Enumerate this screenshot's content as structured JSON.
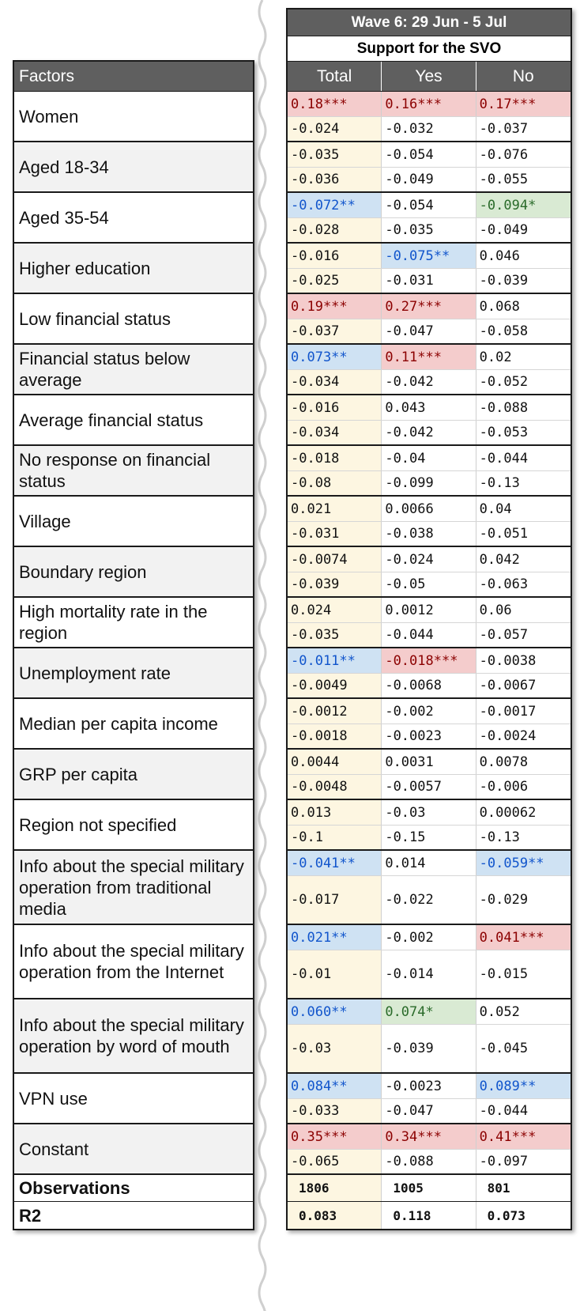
{
  "wave_title": "Wave 6: 29 Jun - 5 Jul",
  "support_title": "Support for the SVO",
  "factors_header": "Factors",
  "columns": [
    "Total",
    "Yes",
    "No"
  ],
  "rows": [
    {
      "factor": "Women",
      "coef": [
        {
          "v": "0.18***",
          "c": "red"
        },
        {
          "v": "0.16***",
          "c": "red"
        },
        {
          "v": "0.17***",
          "c": "red"
        }
      ],
      "se": [
        "-0.024",
        "-0.032",
        "-0.037"
      ]
    },
    {
      "factor": "Aged 18-34",
      "coef": [
        {
          "v": "-0.035",
          "c": ""
        },
        {
          "v": "-0.054",
          "c": ""
        },
        {
          "v": "-0.076",
          "c": ""
        }
      ],
      "se": [
        "-0.036",
        "-0.049",
        "-0.055"
      ]
    },
    {
      "factor": "Aged 35-54",
      "coef": [
        {
          "v": "-0.072**",
          "c": "blue"
        },
        {
          "v": "-0.054",
          "c": ""
        },
        {
          "v": "-0.094*",
          "c": "green"
        }
      ],
      "se": [
        "-0.028",
        "-0.035",
        "-0.049"
      ]
    },
    {
      "factor": "Higher education",
      "coef": [
        {
          "v": "-0.016",
          "c": ""
        },
        {
          "v": "-0.075**",
          "c": "blue"
        },
        {
          "v": "0.046",
          "c": ""
        }
      ],
      "se": [
        "-0.025",
        "-0.031",
        "-0.039"
      ]
    },
    {
      "factor": "Low financial status",
      "coef": [
        {
          "v": "0.19***",
          "c": "red"
        },
        {
          "v": "0.27***",
          "c": "red"
        },
        {
          "v": "0.068",
          "c": ""
        }
      ],
      "se": [
        "-0.037",
        "-0.047",
        "-0.058"
      ]
    },
    {
      "factor": "Financial status below average",
      "coef": [
        {
          "v": "0.073**",
          "c": "blue"
        },
        {
          "v": "0.11***",
          "c": "red"
        },
        {
          "v": "0.02",
          "c": ""
        }
      ],
      "se": [
        "-0.034",
        "-0.042",
        "-0.052"
      ]
    },
    {
      "factor": "Average financial status",
      "coef": [
        {
          "v": "-0.016",
          "c": ""
        },
        {
          "v": "0.043",
          "c": ""
        },
        {
          "v": "-0.088",
          "c": ""
        }
      ],
      "se": [
        "-0.034",
        "-0.042",
        "-0.053"
      ]
    },
    {
      "factor": "No response on financial status",
      "coef": [
        {
          "v": "-0.018",
          "c": ""
        },
        {
          "v": "-0.04",
          "c": ""
        },
        {
          "v": "-0.044",
          "c": ""
        }
      ],
      "se": [
        "-0.08",
        "-0.099",
        "-0.13"
      ]
    },
    {
      "factor": "Village",
      "coef": [
        {
          "v": "0.021",
          "c": ""
        },
        {
          "v": "0.0066",
          "c": ""
        },
        {
          "v": "0.04",
          "c": ""
        }
      ],
      "se": [
        "-0.031",
        "-0.038",
        "-0.051"
      ]
    },
    {
      "factor": "Boundary region",
      "coef": [
        {
          "v": "-0.0074",
          "c": ""
        },
        {
          "v": "-0.024",
          "c": ""
        },
        {
          "v": "0.042",
          "c": ""
        }
      ],
      "se": [
        "-0.039",
        "-0.05",
        "-0.063"
      ]
    },
    {
      "factor": "High mortality rate in the region",
      "coef": [
        {
          "v": "0.024",
          "c": ""
        },
        {
          "v": "0.0012",
          "c": ""
        },
        {
          "v": "0.06",
          "c": ""
        }
      ],
      "se": [
        "-0.035",
        "-0.044",
        "-0.057"
      ]
    },
    {
      "factor": "Unemployment rate",
      "coef": [
        {
          "v": "-0.011**",
          "c": "blue"
        },
        {
          "v": "-0.018***",
          "c": "red"
        },
        {
          "v": "-0.0038",
          "c": ""
        }
      ],
      "se": [
        "-0.0049",
        "-0.0068",
        "-0.0067"
      ]
    },
    {
      "factor": "Median per capita income",
      "coef": [
        {
          "v": "-0.0012",
          "c": ""
        },
        {
          "v": "-0.002",
          "c": ""
        },
        {
          "v": "-0.0017",
          "c": ""
        }
      ],
      "se": [
        "-0.0018",
        "-0.0023",
        "-0.0024"
      ]
    },
    {
      "factor": "GRP per capita",
      "coef": [
        {
          "v": "0.0044",
          "c": ""
        },
        {
          "v": "0.0031",
          "c": ""
        },
        {
          "v": "0.0078",
          "c": ""
        }
      ],
      "se": [
        "-0.0048",
        "-0.0057",
        "-0.006"
      ]
    },
    {
      "factor": "Region not specified",
      "coef": [
        {
          "v": "0.013",
          "c": ""
        },
        {
          "v": "-0.03",
          "c": ""
        },
        {
          "v": "0.00062",
          "c": ""
        }
      ],
      "se": [
        "-0.1",
        "-0.15",
        "-0.13"
      ]
    },
    {
      "factor": "Info about the special military operation from traditional media",
      "coef": [
        {
          "v": "-0.041**",
          "c": "blue"
        },
        {
          "v": "0.014",
          "c": ""
        },
        {
          "v": "-0.059**",
          "c": "blue"
        }
      ],
      "se": [
        "-0.017",
        "-0.022",
        "-0.029"
      ]
    },
    {
      "factor": "Info about the special military operation from the Internet",
      "coef": [
        {
          "v": "0.021**",
          "c": "blue"
        },
        {
          "v": "-0.002",
          "c": ""
        },
        {
          "v": "0.041***",
          "c": "red"
        }
      ],
      "se": [
        "-0.01",
        "-0.014",
        "-0.015"
      ]
    },
    {
      "factor": "Info about the special military operation by word of mouth",
      "coef": [
        {
          "v": "0.060**",
          "c": "blue"
        },
        {
          "v": "0.074*",
          "c": "green"
        },
        {
          "v": "0.052",
          "c": ""
        }
      ],
      "se": [
        "-0.03",
        "-0.039",
        "-0.045"
      ]
    },
    {
      "factor": "VPN use",
      "coef": [
        {
          "v": "0.084**",
          "c": "blue"
        },
        {
          "v": "-0.0023",
          "c": ""
        },
        {
          "v": "0.089**",
          "c": "blue"
        }
      ],
      "se": [
        "-0.033",
        "-0.047",
        "-0.044"
      ]
    },
    {
      "factor": "Constant",
      "coef": [
        {
          "v": "0.35***",
          "c": "red"
        },
        {
          "v": "0.34***",
          "c": "red"
        },
        {
          "v": "0.41***",
          "c": "red"
        }
      ],
      "se": [
        "-0.065",
        "-0.088",
        "-0.097"
      ]
    }
  ],
  "observations": {
    "label": "Observations",
    "values": [
      "1806",
      "1005",
      "801"
    ]
  },
  "r2": {
    "label": "R2",
    "values": [
      "0.083",
      "0.118",
      "0.073"
    ]
  },
  "colors": {
    "header_bg": "#5f5f5f",
    "total_bg": "#fdf6e1",
    "red_bg": "#f4cccc",
    "blue_bg": "#cfe2f3",
    "green_bg": "#d9ead3"
  }
}
